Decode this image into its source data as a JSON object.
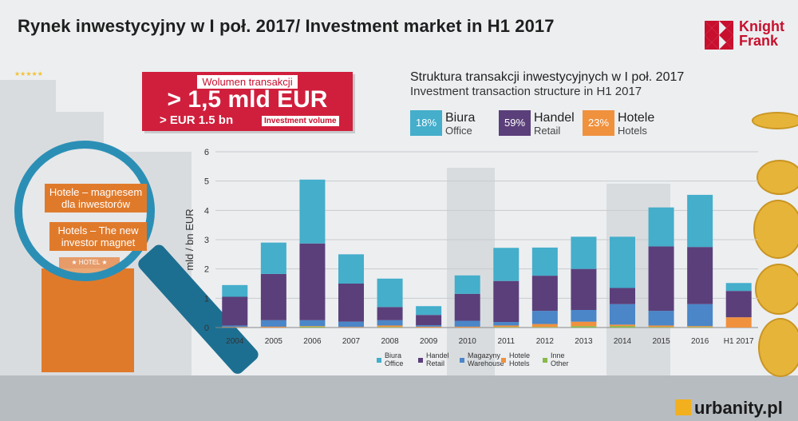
{
  "header": {
    "title": "Rynek inwestycyjny w I poł. 2017/ Investment market in H1 2017",
    "logo_line1": "Knight",
    "logo_line2": "Frank"
  },
  "volume": {
    "label_pl": "Wolumen transakcji",
    "value_pl": "> 1,5 mld EUR",
    "value_en": "> EUR 1.5 bn",
    "label_en": "Investment volume"
  },
  "structure": {
    "title_pl": "Struktura transakcji inwestycyjnych w I poł. 2017",
    "title_en": "Investment transaction structure in H1 2017",
    "items": [
      {
        "pct": "18%",
        "pl": "Biura",
        "en": "Office",
        "color": "#44aecb"
      },
      {
        "pct": "59%",
        "pl": "Handel",
        "en": "Retail",
        "color": "#5b3f7a"
      },
      {
        "pct": "23%",
        "pl": "Hotele",
        "en": "Hotels",
        "color": "#f0913e"
      }
    ]
  },
  "hotels": {
    "pl": "Hotele – magnesem dla inwestorów",
    "en": "Hotels – The new investor magnet",
    "sign": "★ HOTEL ★",
    "stars": "★★★★★"
  },
  "watermark": "urbanity.pl",
  "chart_data": {
    "type": "bar",
    "stacked": true,
    "ylabel": "mld / bn EUR",
    "ylim": [
      0,
      6
    ],
    "yticks": [
      0,
      1,
      2,
      3,
      4,
      5,
      6
    ],
    "grid": true,
    "legend_position": "bottom",
    "categories": [
      "2004",
      "2005",
      "2006",
      "2007",
      "2008",
      "2009",
      "2010",
      "2011",
      "2012",
      "2013",
      "2014",
      "2015",
      "2016",
      "H1 2017"
    ],
    "series": [
      {
        "name": "Inne Other",
        "label_pl": "Inne",
        "label_en": "Other",
        "color": "#8ab84a",
        "values": [
          0,
          0,
          0.03,
          0,
          0.02,
          0,
          0,
          0.02,
          0.02,
          0.05,
          0.05,
          0.02,
          0.02,
          0
        ]
      },
      {
        "name": "Hotele Hotels",
        "label_pl": "Hotele",
        "label_en": "Hotels",
        "color": "#f0913e",
        "values": [
          0.02,
          0.03,
          0.02,
          0.02,
          0.05,
          0.03,
          0.03,
          0.05,
          0.1,
          0.15,
          0.05,
          0.05,
          0.03,
          0.35
        ]
      },
      {
        "name": "Magazyny Warehouse",
        "label_pl": "Magazyny",
        "label_en": "Warehouse",
        "color": "#4a86c8",
        "values": [
          0.05,
          0.22,
          0.2,
          0.18,
          0.18,
          0.05,
          0.2,
          0.12,
          0.45,
          0.4,
          0.7,
          0.5,
          0.75,
          0
        ]
      },
      {
        "name": "Handel Retail",
        "label_pl": "Handel",
        "label_en": "Retail",
        "color": "#5b3f7a",
        "values": [
          0.98,
          1.58,
          2.62,
          1.3,
          0.45,
          0.35,
          0.92,
          1.4,
          1.2,
          1.4,
          0.55,
          2.2,
          1.95,
          0.9
        ]
      },
      {
        "name": "Biura Office",
        "label_pl": "Biura",
        "label_en": "Office",
        "color": "#44aecb",
        "values": [
          0.4,
          1.07,
          2.18,
          1.0,
          0.97,
          0.3,
          0.63,
          1.13,
          0.96,
          1.1,
          1.75,
          1.33,
          1.78,
          0.27
        ]
      }
    ]
  }
}
